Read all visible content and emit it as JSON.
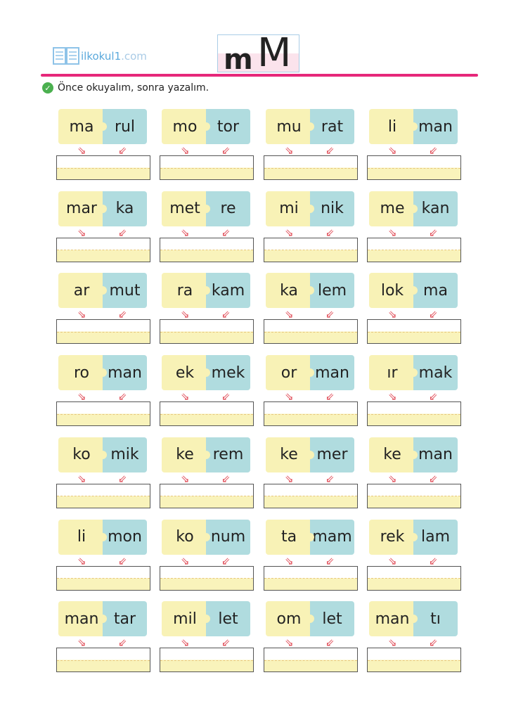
{
  "logo": {
    "name": "ilkokul1",
    "suffix": ".com"
  },
  "letter": {
    "lower": "m",
    "upper": "M"
  },
  "instruction": "Önce okuyalım, sonra yazalım.",
  "colors": {
    "accent": "#e6287a",
    "left_piece": "#f8f2b6",
    "right_piece": "#b0dcdf",
    "check": "#4bb04f"
  },
  "words": [
    [
      [
        "ma",
        "rul"
      ],
      [
        "mo",
        "tor"
      ],
      [
        "mu",
        "rat"
      ],
      [
        "li",
        "man"
      ]
    ],
    [
      [
        "mar",
        "ka"
      ],
      [
        "met",
        "re"
      ],
      [
        "mi",
        "nik"
      ],
      [
        "me",
        "kan"
      ]
    ],
    [
      [
        "ar",
        "mut"
      ],
      [
        "ra",
        "kam"
      ],
      [
        "ka",
        "lem"
      ],
      [
        "lok",
        "ma"
      ]
    ],
    [
      [
        "ro",
        "man"
      ],
      [
        "ek",
        "mek"
      ],
      [
        "or",
        "man"
      ],
      [
        "ır",
        "mak"
      ]
    ],
    [
      [
        "ko",
        "mik"
      ],
      [
        "ke",
        "rem"
      ],
      [
        "ke",
        "mer"
      ],
      [
        "ke",
        "man"
      ]
    ],
    [
      [
        "li",
        "mon"
      ],
      [
        "ko",
        "num"
      ],
      [
        "ta",
        "mam"
      ],
      [
        "rek",
        "lam"
      ]
    ],
    [
      [
        "man",
        "tar"
      ],
      [
        "mil",
        "let"
      ],
      [
        "om",
        "let"
      ],
      [
        "man",
        "tı"
      ]
    ]
  ]
}
